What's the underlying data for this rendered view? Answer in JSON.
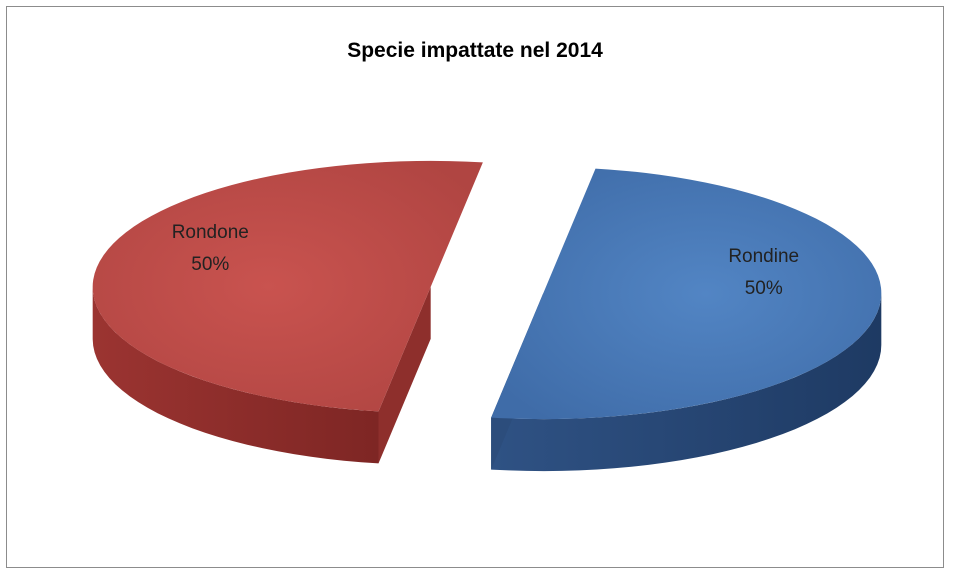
{
  "chart_data": {
    "type": "pie",
    "title": "Specie impattate nel 2014",
    "categories": [
      "Rondine",
      "Rondone"
    ],
    "values": [
      50,
      50
    ],
    "labels": [
      "50%",
      "50%"
    ],
    "colors": [
      "#4f81bd",
      "#c0504d"
    ],
    "style": "3d-exploded",
    "legend": "none"
  }
}
